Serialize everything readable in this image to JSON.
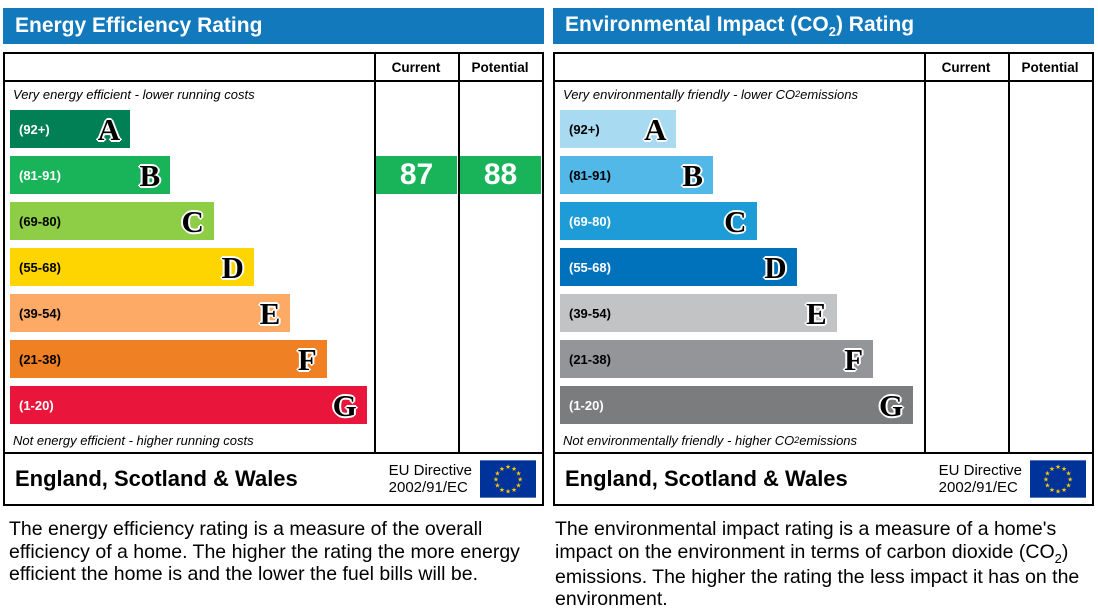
{
  "accent": {
    "header_bg": "#1279bd",
    "border": "#000000"
  },
  "left": {
    "title": "Energy Efficiency Rating",
    "col_current": "Current",
    "col_potential": "Potential",
    "top_note": "Very energy efficient - lower running costs",
    "bottom_note": "Not energy efficient - higher running costs",
    "bands": [
      {
        "range": "(92+)",
        "letter": "A",
        "color": "#008054",
        "text": "#ffffff",
        "width_pct": 33
      },
      {
        "range": "(81-91)",
        "letter": "B",
        "color": "#19b459",
        "text": "#ffffff",
        "width_pct": 44
      },
      {
        "range": "(69-80)",
        "letter": "C",
        "color": "#8dce46",
        "text": "#000000",
        "width_pct": 56
      },
      {
        "range": "(55-68)",
        "letter": "D",
        "color": "#ffd500",
        "text": "#000000",
        "width_pct": 67
      },
      {
        "range": "(39-54)",
        "letter": "E",
        "color": "#fcaa65",
        "text": "#000000",
        "width_pct": 77
      },
      {
        "range": "(21-38)",
        "letter": "F",
        "color": "#ef8023",
        "text": "#000000",
        "width_pct": 87
      },
      {
        "range": "(1-20)",
        "letter": "G",
        "color": "#e9153b",
        "text": "#ffffff",
        "width_pct": 98
      }
    ],
    "current": {
      "value": "87",
      "band_index": 1,
      "color": "#19b459"
    },
    "potential": {
      "value": "88",
      "band_index": 1,
      "color": "#19b459"
    },
    "footer_region": "England, Scotland & Wales",
    "footer_directive_line1": "EU Directive",
    "footer_directive_line2": "2002/91/EC",
    "description": "The energy efficiency rating is a measure of the overall efficiency of a home. The higher the rating the more energy efficient the home is and the lower the fuel bills will be."
  },
  "right": {
    "title_parts": [
      "Environmental Impact (CO",
      "2",
      ") Rating"
    ],
    "col_current": "Current",
    "col_potential": "Potential",
    "top_note_parts": [
      "Very environmentally friendly - lower CO",
      "2",
      " emissions"
    ],
    "bottom_note_parts": [
      "Not environmentally friendly - higher CO",
      "2",
      " emissions"
    ],
    "bands": [
      {
        "range": "(92+)",
        "letter": "A",
        "color": "#a8dbf2",
        "text": "#000000",
        "width_pct": 32
      },
      {
        "range": "(81-91)",
        "letter": "B",
        "color": "#51b8e8",
        "text": "#000000",
        "width_pct": 42
      },
      {
        "range": "(69-80)",
        "letter": "C",
        "color": "#1e9cd8",
        "text": "#ffffff",
        "width_pct": 54
      },
      {
        "range": "(55-68)",
        "letter": "D",
        "color": "#0072bb",
        "text": "#ffffff",
        "width_pct": 65
      },
      {
        "range": "(39-54)",
        "letter": "E",
        "color": "#c2c3c5",
        "text": "#000000",
        "width_pct": 76
      },
      {
        "range": "(21-38)",
        "letter": "F",
        "color": "#949599",
        "text": "#000000",
        "width_pct": 86
      },
      {
        "range": "(1-20)",
        "letter": "G",
        "color": "#7b7c7e",
        "text": "#ffffff",
        "width_pct": 97
      }
    ],
    "footer_region": "England, Scotland & Wales",
    "footer_directive_line1": "EU Directive",
    "footer_directive_line2": "2002/91/EC",
    "description_parts": [
      "The environmental impact rating is a measure of a home's impact on the environment in terms of carbon dioxide (CO",
      "2",
      ") emissions. The higher the rating the less impact it has on the environment."
    ]
  },
  "chart_data": [
    {
      "type": "bar",
      "title": "Energy Efficiency Rating",
      "categories": [
        "A (92+)",
        "B (81-91)",
        "C (69-80)",
        "D (55-68)",
        "E (39-54)",
        "F (21-38)",
        "G (1-20)"
      ],
      "series": [
        {
          "name": "Current",
          "values": [
            87
          ],
          "band": "B"
        },
        {
          "name": "Potential",
          "values": [
            88
          ],
          "band": "B"
        }
      ],
      "ylim": [
        1,
        100
      ],
      "legend_position": "top-right-columns",
      "annotations": [
        "Very energy efficient - lower running costs",
        "Not energy efficient - higher running costs",
        "England, Scotland & Wales",
        "EU Directive 2002/91/EC"
      ]
    },
    {
      "type": "bar",
      "title": "Environmental Impact (CO2) Rating",
      "categories": [
        "A (92+)",
        "B (81-91)",
        "C (69-80)",
        "D (55-68)",
        "E (39-54)",
        "F (21-38)",
        "G (1-20)"
      ],
      "series": [
        {
          "name": "Current",
          "values": []
        },
        {
          "name": "Potential",
          "values": []
        }
      ],
      "ylim": [
        1,
        100
      ],
      "legend_position": "top-right-columns",
      "annotations": [
        "Very environmentally friendly - lower CO2 emissions",
        "Not environmentally friendly - higher CO2 emissions",
        "England, Scotland & Wales",
        "EU Directive 2002/91/EC"
      ]
    }
  ]
}
